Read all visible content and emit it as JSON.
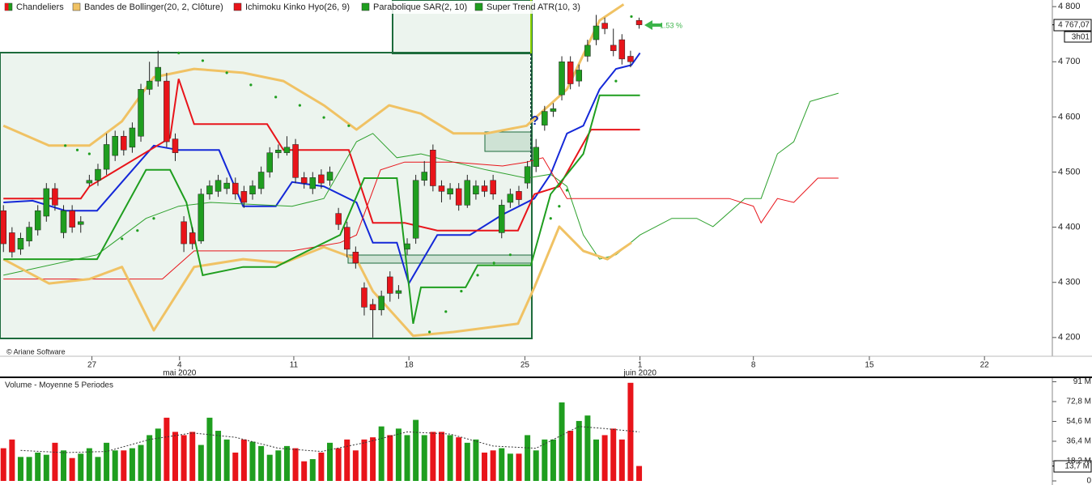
{
  "chart_data": [
    {
      "type": "candlestick",
      "xlim": [
        -0.4,
        122.1
      ],
      "ylim": [
        4166,
        4812
      ],
      "yticks": [
        {
          "value": 4200,
          "label": "4 200"
        },
        {
          "value": 4300,
          "label": "4 300"
        },
        {
          "value": 4400,
          "label": "4 400"
        },
        {
          "value": 4500,
          "label": "4 500"
        },
        {
          "value": 4600,
          "label": "4 600"
        },
        {
          "value": 4700,
          "label": "4 700"
        },
        {
          "value": 4800,
          "label": "4 800"
        }
      ],
      "xticks": [
        {
          "value": 10.3,
          "label": "27"
        },
        {
          "value": 20.5,
          "label": "4"
        },
        {
          "value": 33.8,
          "label": "11"
        },
        {
          "value": 47.2,
          "label": "18"
        },
        {
          "value": 60.7,
          "label": "25"
        },
        {
          "value": 74.1,
          "label": "1"
        },
        {
          "value": 87.3,
          "label": "8"
        },
        {
          "value": 100.8,
          "label": "15"
        },
        {
          "value": 114.2,
          "label": "22"
        }
      ],
      "month_ticks": [
        {
          "value": 20.5,
          "label": "mai 2020"
        },
        {
          "value": 74.1,
          "label": "juin 2020"
        }
      ],
      "series": [
        {
          "name": "Chandeliers",
          "color": "#1f9e1f",
          "down_color": "#e8141a",
          "open": [
            4430,
            4390,
            4360,
            4375,
            4395,
            4420,
            4470,
            4390,
            4430,
            4405,
            4480,
            4485,
            4505,
            4530,
            4565,
            4545,
            4565,
            4650,
            4665,
            4665,
            4560,
            4410,
            4390,
            4375,
            4460,
            4465,
            4470,
            4480,
            4465,
            4460,
            4470,
            4500,
            4535,
            4535,
            4550,
            4490,
            4470,
            4495,
            4485,
            4425,
            4400,
            4355,
            4290,
            4260,
            4250,
            4310,
            4280,
            4360,
            4380,
            4485,
            4540,
            4475,
            4460,
            4470,
            4440,
            4460,
            4475,
            4485,
            4390,
            4445,
            4465,
            4480,
            4510,
            4585,
            4610,
            4640,
            4700,
            4665,
            4710,
            4740,
            4770,
            4730,
            4740,
            4710,
            4775
          ],
          "high": [
            4440,
            4400,
            4390,
            4410,
            4440,
            4480,
            4480,
            4440,
            4440,
            4420,
            4495,
            4515,
            4570,
            4575,
            4575,
            4590,
            4660,
            4700,
            4720,
            4680,
            4570,
            4420,
            4400,
            4470,
            4485,
            4495,
            4490,
            4490,
            4475,
            4485,
            4510,
            4545,
            4550,
            4565,
            4560,
            4500,
            4500,
            4505,
            4510,
            4435,
            4410,
            4365,
            4300,
            4270,
            4285,
            4320,
            4295,
            4380,
            4495,
            4520,
            4550,
            4485,
            4480,
            4480,
            4495,
            4485,
            4485,
            4495,
            4450,
            4470,
            4475,
            4520,
            4560,
            4620,
            4625,
            4710,
            4710,
            4695,
            4740,
            4785,
            4780,
            4760,
            4750,
            4720,
            4780
          ],
          "low": [
            4355,
            4345,
            4350,
            4365,
            4385,
            4410,
            4430,
            4380,
            4390,
            4390,
            4475,
            4475,
            4495,
            4520,
            4530,
            4535,
            4555,
            4640,
            4655,
            4545,
            4520,
            4355,
            4360,
            4370,
            4450,
            4455,
            4460,
            4450,
            4435,
            4450,
            4460,
            4490,
            4525,
            4530,
            4480,
            4470,
            4460,
            4470,
            4475,
            4395,
            4345,
            4325,
            4240,
            4200,
            4240,
            4265,
            4270,
            4350,
            4370,
            4475,
            4465,
            4445,
            4450,
            4430,
            4435,
            4450,
            4455,
            4450,
            4380,
            4435,
            4440,
            4470,
            4500,
            4575,
            4600,
            4630,
            4650,
            4655,
            4700,
            4730,
            4750,
            4710,
            4695,
            4690,
            4760
          ],
          "close": [
            4370,
            4355,
            4380,
            4400,
            4430,
            4470,
            4440,
            4430,
            4400,
            4410,
            4485,
            4505,
            4550,
            4565,
            4540,
            4580,
            4650,
            4665,
            4690,
            4555,
            4535,
            4370,
            4370,
            4460,
            4475,
            4485,
            4480,
            4460,
            4445,
            4475,
            4500,
            4535,
            4540,
            4545,
            4490,
            4480,
            4490,
            4480,
            4500,
            4405,
            4360,
            4335,
            4255,
            4250,
            4275,
            4280,
            4285,
            4370,
            4485,
            4500,
            4475,
            4465,
            4470,
            4440,
            4485,
            4475,
            4465,
            4460,
            4440,
            4460,
            4450,
            4510,
            4545,
            4610,
            4615,
            4700,
            4660,
            4685,
            4730,
            4765,
            4760,
            4720,
            4705,
            4700,
            4767
          ]
        },
        {
          "name": "Bandes de Bollinger(20, 2, Clôture)",
          "color": "#f0c264",
          "upper": {
            "x": [
              0,
              5.3,
              10,
              13.8,
              17.5,
              22.2,
              27.9,
              32.6,
              37.3,
              41.1,
              44.9,
              48.6,
              52.4,
              56.2,
              60.9,
              65.6,
              69.4,
              72.2
            ],
            "values": [
              4584,
              4548,
              4548,
              4592,
              4672,
              4687,
              4680,
              4665,
              4621,
              4577,
              4621,
              4606,
              4570,
              4570,
              4584,
              4650,
              4775,
              4804
            ]
          },
          "lower": {
            "x": [
              0,
              5.3,
              10,
              13.8,
              17.5,
              22.2,
              27.9,
              32.6,
              37.3,
              41.1,
              43.0,
              47.7,
              52.4,
              59.9,
              61.8,
              64.7,
              67.5,
              70.3,
              73.1
            ],
            "values": [
              4342,
              4298,
              4306,
              4328,
              4213,
              4328,
              4342,
              4335,
              4364,
              4342,
              4284,
              4203,
              4210,
              4225,
              4291,
              4401,
              4357,
              4342,
              4372
            ]
          }
        },
        {
          "name": "Ichimoku Kinko Hyo(26, 9)",
          "color": "#e8141a",
          "lines": [
            {
              "color": "#1428d8",
              "width": 2,
              "x": [
                0,
                3.4,
                7.2,
                10.9,
                13.8,
                17.5,
                20.4,
                25.1,
                27.9,
                31.7,
                33.6,
                37.3,
                41.1,
                43.0,
                45.8,
                47.2,
                50.5,
                54.3,
                58.1,
                61.8,
                63.7,
                65.6,
                67.5,
                69.4,
                71.3,
                73.1,
                74.1
              ],
              "values": [
                4445,
                4448,
                4430,
                4430,
                4482,
                4548,
                4540,
                4540,
                4438,
                4438,
                4482,
                4474,
                4445,
                4372,
                4372,
                4298,
                4386,
                4386,
                4423,
                4452,
                4496,
                4570,
                4584,
                4650,
                4687,
                4694,
                4716
              ]
            },
            {
              "color": "#e8141a",
              "width": 2,
              "x": [
                0,
                9.0,
                10.0,
                19.4,
                20.4,
                22.2,
                30.7,
                32.6,
                40.2,
                43.0,
                46.7,
                50.5,
                59.9,
                61.8,
                64.7,
                68.4,
                74.1
              ],
              "values": [
                4452,
                4452,
                4474,
                4562,
                4669,
                4587,
                4587,
                4540,
                4540,
                4408,
                4408,
                4394,
                4394,
                4460,
                4474,
                4577,
                4577
              ]
            },
            {
              "color": "#2ca02c",
              "width": 1,
              "x": [
                0,
                10.9,
                12.8,
                16.6,
                20.4,
                24.1,
                33.6,
                37.3,
                41.1,
                43.0,
                45.8,
                48.6,
                52.4,
                56.2,
                60.9,
                63.7,
                65.6,
                67.5,
                69.4,
                71.3,
                74.1,
                77.8,
                80.7,
                82.6,
                86.3,
                88.2,
                90.1,
                92.0,
                93.9,
                97.2
              ],
              "values": [
                4313,
                4350,
                4372,
                4416,
                4438,
                4445,
                4438,
                4452,
                4555,
                4570,
                4526,
                4533,
                4518,
                4504,
                4489,
                4496,
                4474,
                4386,
                4342,
                4350,
                4386,
                4416,
                4416,
                4401,
                4452,
                4452,
                4533,
                4555,
                4628,
                4643
              ]
            },
            {
              "color": "#e8141a",
              "width": 1,
              "x": [
                0,
                18.5,
                22.2,
                33.6,
                39.2,
                41.1,
                43.9,
                46.7,
                52.4,
                58.1,
                60.9,
                62.8,
                65.6,
                84.5,
                87.3,
                88.2,
                90.1,
                92.0,
                94.8,
                97.2
              ],
              "values": [
                4306,
                4306,
                4357,
                4357,
                4372,
                4386,
                4504,
                4518,
                4518,
                4511,
                4518,
                4526,
                4452,
                4452,
                4438,
                4408,
                4452,
                4445,
                4489,
                4489
              ]
            }
          ]
        },
        {
          "name": "Parabolique SAR(2, 10)",
          "color": "#1f9e1f",
          "x": [
            7.2,
            8.6,
            10.0,
            13.8,
            15.6,
            17.5,
            20.4,
            23.2,
            26.0,
            28.8,
            31.7,
            34.5,
            37.3,
            40.2,
            49.6,
            51.5,
            53.3,
            55.2,
            57.1,
            59.0,
            63.7,
            64.7,
            65.6,
            71.3,
            73.1
          ],
          "values": [
            4548,
            4540,
            4533,
            4379,
            4394,
            4416,
            4716,
            4702,
            4680,
            4658,
            4636,
            4621,
            4599,
            4584,
            4210,
            4247,
            4284,
            4313,
            4335,
            4350,
            4416,
            4438,
            4467,
            4665,
            4782
          ]
        },
        {
          "name": "Super Trend ATR(10, 3)",
          "color": "#1f9e1f",
          "x": [
            0,
            10.9,
            16.6,
            19.4,
            21.3,
            23.2,
            27.9,
            31.7,
            35.4,
            39.2,
            42.0,
            45.8,
            47.7,
            48.6,
            53.8,
            55.2,
            61.4,
            63.7,
            65.6,
            67.5,
            69.4,
            74.1
          ],
          "values": [
            4342,
            4342,
            4504,
            4504,
            4445,
            4313,
            4328,
            4328,
            4357,
            4386,
            4489,
            4489,
            4225,
            4291,
            4291,
            4331,
            4331,
            4460,
            4496,
            4533,
            4639,
            4639
          ]
        }
      ],
      "last_price": {
        "value": 4767.07,
        "label": "4 767,07"
      },
      "interval": "3h01",
      "change": "1.53 %",
      "copyright": "© Ariane Software",
      "note": "?"
    },
    {
      "type": "bar",
      "title": "Volume  - Moyenne 5 Periodes",
      "ylim": [
        -1.5,
        94.3
      ],
      "yticks": [
        0,
        {
          "value": 18.2,
          "label": "18,2 M"
        },
        {
          "value": 36.4,
          "label": "36,4 M"
        },
        {
          "value": 54.6,
          "label": "54,6 M"
        },
        {
          "value": 72.8,
          "label": "72,8 M"
        },
        {
          "value": 91,
          "label": "91 M"
        }
      ],
      "values": [
        30,
        38,
        22,
        22,
        26,
        24,
        35,
        28,
        21,
        25,
        30,
        22,
        35,
        28,
        28,
        30,
        33,
        42,
        48,
        58,
        45,
        42,
        45,
        33,
        58,
        46,
        38,
        26,
        38,
        36,
        32,
        24,
        28,
        32,
        30,
        18,
        20,
        26,
        35,
        30,
        38,
        28,
        38,
        40,
        50,
        42,
        48,
        42,
        56,
        42,
        45,
        45,
        42,
        40,
        35,
        38,
        26,
        28,
        30,
        25,
        25,
        42,
        28,
        38,
        38,
        72,
        46,
        55,
        60,
        38,
        42,
        48,
        38,
        90,
        13.7
      ],
      "average": {
        "color": "#333333",
        "x": [
          2,
          7,
          12,
          17,
          22,
          27,
          32,
          37,
          42,
          47,
          52,
          57,
          62,
          67,
          70,
          74
        ],
        "values": [
          28,
          26,
          27,
          38,
          44,
          40,
          30,
          27,
          35,
          45,
          43,
          32,
          30,
          50,
          48,
          45
        ]
      },
      "last_value": {
        "value": 13.7,
        "label": "13,7 M"
      }
    }
  ]
}
